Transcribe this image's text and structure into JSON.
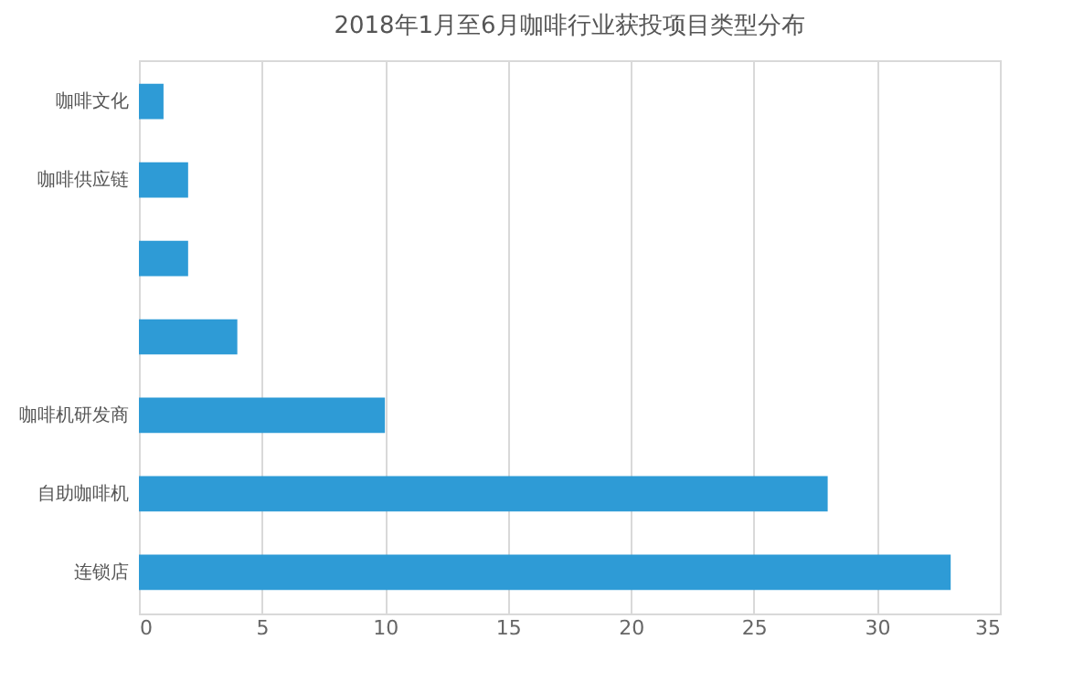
{
  "chart_data": {
    "type": "bar",
    "orientation": "horizontal",
    "title": "2018年1月至6月咖啡行业获投项目类型分布",
    "categories": [
      "咖啡文化",
      "咖啡供应链",
      null,
      null,
      "咖啡机研发商",
      "自助咖啡机",
      "连锁店"
    ],
    "values": [
      1,
      2,
      2,
      4,
      10,
      28,
      33
    ],
    "color": "#2e9bd6",
    "xlim": [
      0,
      35
    ],
    "xticks": [
      0,
      5,
      10,
      15,
      20,
      25,
      30,
      35
    ],
    "grid": "x"
  }
}
